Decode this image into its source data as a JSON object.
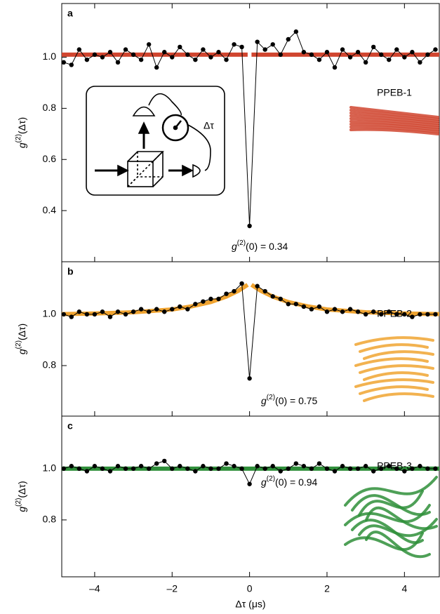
{
  "chart_data": [
    {
      "type": "line",
      "panel": "a",
      "y_label": {
        "base": "g",
        "sup": "(2)",
        "rest": "(Δτ)"
      },
      "annotation": {
        "base": "g",
        "sup": "(2)",
        "rest": "(0) = 0.34"
      },
      "sample_label": "PPEB-1",
      "sample_color": "#d0452f",
      "inset_label": "Δτ",
      "xlim": [
        -4.85,
        4.9
      ],
      "ylim": [
        0.2,
        1.21
      ],
      "xticks": [
        {
          "value": -4,
          "label": "–4"
        },
        {
          "value": -2,
          "label": "–2"
        },
        0,
        2,
        4
      ],
      "xtick_labels": false,
      "yticks": [
        0.4,
        0.6,
        0.8,
        {
          "value": 1,
          "label": "1.0"
        }
      ],
      "series": [
        {
          "style": "fit",
          "color": "#d0452f",
          "x": [
            -4.85,
            -0.05,
            0,
            0.05,
            4.9
          ],
          "values": [
            1.01,
            1.01,
            null,
            1.01,
            1.01
          ]
        },
        {
          "style": "points",
          "color": "#000000",
          "x": [
            -4.8,
            -4.6,
            -4.4,
            -4.2,
            -4,
            -3.8,
            -3.6,
            -3.4,
            -3.2,
            -3,
            -2.8,
            -2.6,
            -2.4,
            -2.2,
            -2,
            -1.8,
            -1.6,
            -1.4,
            -1.2,
            -1,
            -0.8,
            -0.6,
            -0.4,
            -0.2,
            0,
            0.2,
            0.4,
            0.6,
            0.8,
            1,
            1.2,
            1.4,
            1.6,
            1.8,
            2,
            2.2,
            2.4,
            2.6,
            2.8,
            3,
            3.2,
            3.4,
            3.6,
            3.8,
            4,
            4.2,
            4.4,
            4.6,
            4.8
          ],
          "values": [
            0.98,
            0.97,
            1.03,
            0.99,
            1.01,
            1.0,
            1.02,
            0.98,
            1.03,
            1.01,
            0.99,
            1.05,
            0.96,
            1.02,
            1.0,
            1.04,
            1.01,
            0.99,
            1.03,
            1.0,
            1.02,
            0.99,
            1.05,
            1.04,
            0.34,
            1.06,
            1.03,
            1.05,
            1.01,
            1.07,
            1.1,
            1.02,
            1.01,
            0.99,
            1.02,
            0.96,
            1.03,
            1.0,
            1.02,
            0.98,
            1.04,
            1.01,
            0.99,
            1.03,
            1.0,
            1.02,
            0.98,
            1.01,
            1.03
          ]
        }
      ]
    },
    {
      "type": "line",
      "panel": "b",
      "y_label": {
        "base": "g",
        "sup": "(2)",
        "rest": "(Δτ)"
      },
      "annotation": {
        "base": "g",
        "sup": "(2)",
        "rest": "(0) = 0.75"
      },
      "sample_label": "PPEB-2",
      "sample_color": "#f0a431",
      "xlim": [
        -4.85,
        4.9
      ],
      "ylim": [
        0.603,
        1.205
      ],
      "xticks": [
        {
          "value": -4,
          "label": "–4"
        },
        {
          "value": -2,
          "label": "–2"
        },
        0,
        2,
        4
      ],
      "xtick_labels": false,
      "yticks": [
        0.8,
        {
          "value": 1,
          "label": "1.0"
        }
      ],
      "series": [
        {
          "style": "fit",
          "color": "#f0a431",
          "x": [
            -4.85,
            -4,
            -3,
            -2,
            -1.5,
            -1,
            -0.6,
            -0.3,
            -0.05,
            0,
            0.05,
            0.3,
            0.6,
            1,
            1.5,
            2,
            3,
            4,
            4.9
          ],
          "values": [
            1.001,
            1.003,
            1.008,
            1.019,
            1.031,
            1.048,
            1.069,
            1.091,
            1.115,
            null,
            1.115,
            1.091,
            1.069,
            1.048,
            1.031,
            1.019,
            1.008,
            1.003,
            1.001
          ]
        },
        {
          "style": "points",
          "color": "#000000",
          "x": [
            -4.8,
            -4.6,
            -4.4,
            -4.2,
            -4,
            -3.8,
            -3.6,
            -3.4,
            -3.2,
            -3,
            -2.8,
            -2.6,
            -2.4,
            -2.2,
            -2,
            -1.8,
            -1.6,
            -1.4,
            -1.2,
            -1,
            -0.8,
            -0.6,
            -0.4,
            -0.2,
            0,
            0.2,
            0.4,
            0.6,
            0.8,
            1,
            1.2,
            1.4,
            1.6,
            1.8,
            2,
            2.2,
            2.4,
            2.6,
            2.8,
            3,
            3.2,
            3.4,
            3.6,
            3.8,
            4,
            4.2,
            4.4,
            4.6,
            4.8
          ],
          "values": [
            1.0,
            0.99,
            1.01,
            1.0,
            1.0,
            1.01,
            0.99,
            1.01,
            1.0,
            1.01,
            1.02,
            1.01,
            1.02,
            1.01,
            1.02,
            1.03,
            1.02,
            1.04,
            1.05,
            1.06,
            1.06,
            1.08,
            1.09,
            1.12,
            0.75,
            1.11,
            1.09,
            1.07,
            1.06,
            1.04,
            1.04,
            1.03,
            1.02,
            1.03,
            1.01,
            1.02,
            1.01,
            1.02,
            1.01,
            1.0,
            1.01,
            1.0,
            1.01,
            1.0,
            1.0,
            0.99,
            1.0,
            1.0,
            1.0
          ]
        }
      ]
    },
    {
      "type": "line",
      "panel": "c",
      "y_label": {
        "base": "g",
        "sup": "(2)",
        "rest": "(Δτ)"
      },
      "annotation": {
        "base": "g",
        "sup": "(2)",
        "rest": "(0) = 0.94"
      },
      "sample_label": "PPEB-3",
      "sample_color": "#2f8f3a",
      "x_label": "Δτ (μs)",
      "xlim": [
        -4.85,
        4.9
      ],
      "ylim": [
        0.578,
        1.205
      ],
      "xticks": [
        {
          "value": -4,
          "label": "–4"
        },
        {
          "value": -2,
          "label": "–2"
        },
        0,
        2,
        4
      ],
      "xtick_labels": true,
      "yticks": [
        0.8,
        {
          "value": 1,
          "label": "1.0"
        }
      ],
      "series": [
        {
          "style": "fit",
          "color": "#2f8f3a",
          "x": [
            -4.85,
            4.9
          ],
          "values": [
            1.0,
            1.0
          ]
        },
        {
          "style": "points",
          "color": "#000000",
          "x": [
            -4.8,
            -4.6,
            -4.4,
            -4.2,
            -4,
            -3.8,
            -3.6,
            -3.4,
            -3.2,
            -3,
            -2.8,
            -2.6,
            -2.4,
            -2.2,
            -2,
            -1.8,
            -1.6,
            -1.4,
            -1.2,
            -1,
            -0.8,
            -0.6,
            -0.4,
            -0.2,
            0,
            0.2,
            0.4,
            0.6,
            0.8,
            1,
            1.2,
            1.4,
            1.6,
            1.8,
            2,
            2.2,
            2.4,
            2.6,
            2.8,
            3,
            3.2,
            3.4,
            3.6,
            3.8,
            4,
            4.2,
            4.4,
            4.6,
            4.8
          ],
          "values": [
            1.0,
            1.01,
            1.0,
            0.99,
            1.01,
            1.0,
            0.99,
            1.01,
            1.0,
            1.0,
            1.01,
            1.0,
            1.02,
            1.03,
            1.0,
            1.01,
            1.0,
            0.99,
            1.01,
            1.0,
            1.0,
            1.02,
            1.01,
            1.0,
            0.94,
            1.01,
            1.0,
            1.01,
            0.99,
            1.0,
            1.02,
            1.01,
            1.0,
            1.02,
            1.0,
            0.99,
            1.01,
            1.0,
            1.0,
            1.01,
            0.99,
            1.0,
            1.01,
            1.0,
            0.99,
            1.0,
            1.01,
            1.0,
            1.0
          ]
        }
      ]
    }
  ]
}
